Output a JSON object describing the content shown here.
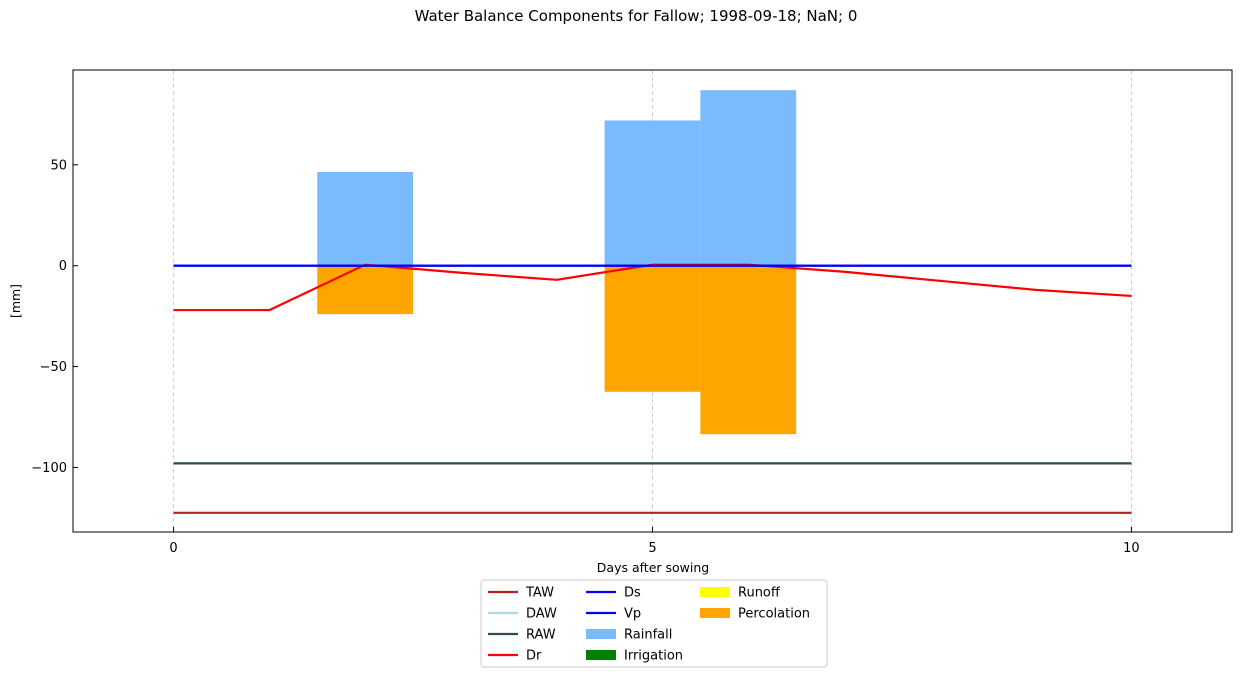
{
  "chart_data": {
    "type": "bar",
    "title": "Water Balance Components for Fallow; 1998-09-18; NaN; 0",
    "xlabel": "Days after sowing",
    "ylabel": "[mm]",
    "xlim": [
      -1.05,
      11.05
    ],
    "ylim": [
      -132,
      97
    ],
    "xticks": [
      0,
      5,
      10
    ],
    "yticks": [
      -100,
      -50,
      0,
      50
    ],
    "x_grid": true,
    "y_grid": false,
    "legend_position": "bottom-center",
    "lines": [
      {
        "name": "TAW",
        "color": "#b22222",
        "x": [
          0,
          10
        ],
        "y": [
          -122.5,
          -122.5
        ]
      },
      {
        "name": "DAW",
        "color": "#add8e6",
        "x": [
          0,
          10
        ],
        "y": [
          -98,
          -98
        ]
      },
      {
        "name": "RAW",
        "color": "#2f4f4f",
        "x": [
          0,
          10
        ],
        "y": [
          -98,
          -98
        ]
      },
      {
        "name": "Dr",
        "color": "#ff0000",
        "x": [
          0,
          1,
          2,
          3,
          4,
          5,
          6,
          7,
          8,
          9,
          10
        ],
        "y": [
          -22,
          -22,
          0.5,
          -3.5,
          -7,
          0.5,
          0.5,
          -3,
          -7.5,
          -12,
          -15
        ]
      },
      {
        "name": "Ds",
        "color": "#0000ff",
        "x": [
          0,
          10
        ],
        "y": [
          0,
          0
        ]
      },
      {
        "name": "Vp",
        "color": "#0000ff",
        "x": [
          0,
          10
        ],
        "y": [
          0,
          0
        ]
      }
    ],
    "bars": [
      {
        "name": "Rainfall",
        "color": "#79bbff",
        "x": [
          2,
          5,
          6
        ],
        "values": [
          46.5,
          72,
          87
        ]
      },
      {
        "name": "Irrigation",
        "color": "#008000",
        "x": [],
        "values": []
      },
      {
        "name": "Runoff",
        "color": "#ffff00",
        "x": [],
        "values": []
      },
      {
        "name": "Percolation",
        "color": "#ffa500",
        "x": [
          2,
          5,
          6
        ],
        "values": [
          -24,
          -62.5,
          -83.5
        ]
      }
    ],
    "bar_width": 1.0,
    "legend": [
      {
        "label": "TAW",
        "kind": "line",
        "color": "#b22222"
      },
      {
        "label": "DAW",
        "kind": "line",
        "color": "#add8e6"
      },
      {
        "label": "RAW",
        "kind": "line",
        "color": "#2f4f4f"
      },
      {
        "label": "Dr",
        "kind": "line",
        "color": "#ff0000"
      },
      {
        "label": "Ds",
        "kind": "line",
        "color": "#0000ff"
      },
      {
        "label": "Vp",
        "kind": "line",
        "color": "#0000ff"
      },
      {
        "label": "Rainfall",
        "kind": "patch",
        "color": "#79bbff"
      },
      {
        "label": "Irrigation",
        "kind": "patch",
        "color": "#008000"
      },
      {
        "label": "Runoff",
        "kind": "patch",
        "color": "#ffff00"
      },
      {
        "label": "Percolation",
        "kind": "patch",
        "color": "#ffa500"
      }
    ]
  }
}
